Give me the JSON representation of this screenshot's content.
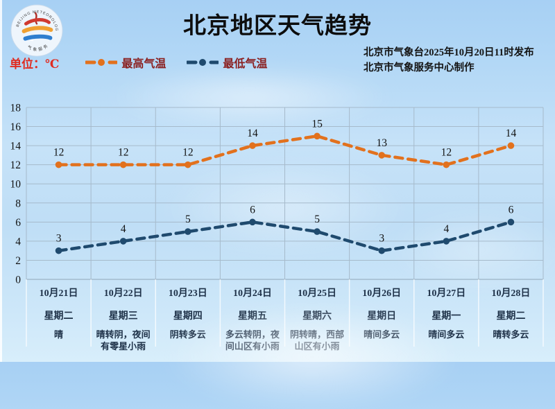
{
  "header": {
    "title": "北京地区天气趋势",
    "logo": "beijing-meteorological-service-logo",
    "publish_line1": "北京市气象台2025年10月20日11时发布",
    "publish_line2": "北京市气象服务中心制作"
  },
  "legend": {
    "unit_label": "单位：℃",
    "unit_color": "#e02b20",
    "label_color": "#8b2121"
  },
  "chart_data": {
    "type": "line",
    "title": "北京地区天气趋势",
    "ylabel": "℃",
    "ylim": [
      0,
      18
    ],
    "ytick_step": 2,
    "grid": true,
    "line_style": "dashed",
    "legend_position": "top-left",
    "categories": [
      {
        "date": "10月21日",
        "weekday": "星期二",
        "weather": "晴"
      },
      {
        "date": "10月22日",
        "weekday": "星期三",
        "weather": "晴转阴，夜间有零星小雨"
      },
      {
        "date": "10月23日",
        "weekday": "星期四",
        "weather": "阴转多云"
      },
      {
        "date": "10月24日",
        "weekday": "星期五",
        "weather": "多云转阴，夜间山区有小雨"
      },
      {
        "date": "10月25日",
        "weekday": "星期六",
        "weather": "阴转晴，西部山区有小雨"
      },
      {
        "date": "10月26日",
        "weekday": "星期日",
        "weather": "晴间多云"
      },
      {
        "date": "10月27日",
        "weekday": "星期一",
        "weather": "晴间多云"
      },
      {
        "date": "10月28日",
        "weekday": "星期二",
        "weather": "晴转多云"
      }
    ],
    "series": [
      {
        "name": "最高气温",
        "color": "#e2711d",
        "values": [
          12,
          12,
          12,
          14,
          15,
          13,
          12,
          14
        ]
      },
      {
        "name": "最低气温",
        "color": "#1f4a6e",
        "values": [
          3,
          4,
          5,
          6,
          5,
          3,
          4,
          6
        ]
      }
    ]
  }
}
